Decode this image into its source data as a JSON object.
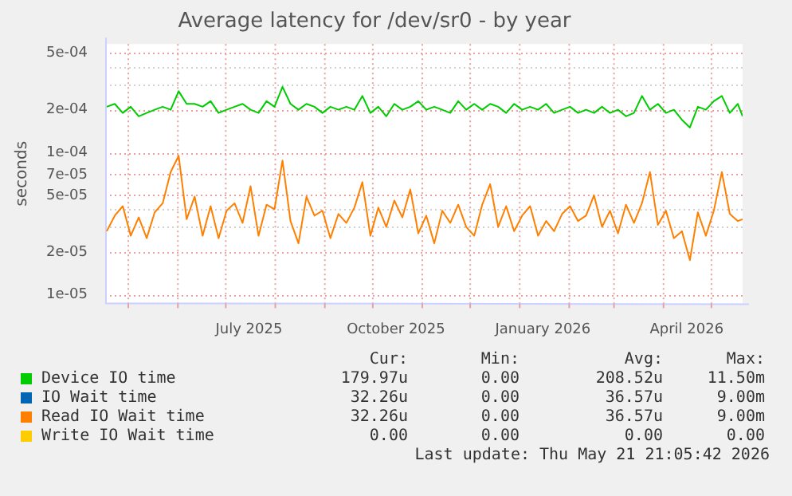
{
  "chart_data": {
    "type": "line",
    "title": "Average latency for /dev/sr0 - by year",
    "ylabel": "seconds",
    "log": "y",
    "grid": true,
    "legend": "bottom",
    "marker": "none",
    "x": [
      "2025-04-18",
      "2025-04-23",
      "2025-04-28",
      "2025-05-03",
      "2025-05-08",
      "2025-05-13",
      "2025-05-18",
      "2025-05-23",
      "2025-05-28",
      "2025-06-02",
      "2025-06-07",
      "2025-06-12",
      "2025-06-17",
      "2025-06-22",
      "2025-06-27",
      "2025-07-02",
      "2025-07-07",
      "2025-07-12",
      "2025-07-17",
      "2025-07-22",
      "2025-07-27",
      "2025-08-01",
      "2025-08-06",
      "2025-08-11",
      "2025-08-16",
      "2025-08-21",
      "2025-08-26",
      "2025-08-31",
      "2025-09-05",
      "2025-09-10",
      "2025-09-15",
      "2025-09-20",
      "2025-09-25",
      "2025-09-30",
      "2025-10-05",
      "2025-10-10",
      "2025-10-15",
      "2025-10-20",
      "2025-10-25",
      "2025-10-30",
      "2025-11-04",
      "2025-11-09",
      "2025-11-14",
      "2025-11-19",
      "2025-11-24",
      "2025-11-29",
      "2025-12-04",
      "2025-12-09",
      "2025-12-14",
      "2025-12-19",
      "2025-12-24",
      "2025-12-29",
      "2026-01-03",
      "2026-01-08",
      "2026-01-13",
      "2026-01-18",
      "2026-01-23",
      "2026-01-28",
      "2026-02-02",
      "2026-02-07",
      "2026-02-12",
      "2026-02-17",
      "2026-02-22",
      "2026-02-27",
      "2026-03-04",
      "2026-03-09",
      "2026-03-14",
      "2026-03-19",
      "2026-03-24",
      "2026-03-29",
      "2026-04-03",
      "2026-04-08",
      "2026-04-13",
      "2026-04-18",
      "2026-04-23",
      "2026-04-28",
      "2026-05-03",
      "2026-05-08",
      "2026-05-13",
      "2026-05-18",
      "2026-05-21"
    ],
    "xlim": [
      "2025-04-17",
      "2026-05-21"
    ],
    "xticks": [
      {
        "value": "2025-05-01",
        "label": null
      },
      {
        "value": "2025-06-01",
        "label": null
      },
      {
        "value": "2025-07-01",
        "label": null
      },
      {
        "value": "2025-07-16",
        "label": "July 2025"
      },
      {
        "value": "2025-08-01",
        "label": null
      },
      {
        "value": "2025-09-01",
        "label": null
      },
      {
        "value": "2025-10-01",
        "label": null
      },
      {
        "value": "2025-10-16",
        "label": "October 2025"
      },
      {
        "value": "2025-11-01",
        "label": null
      },
      {
        "value": "2025-12-01",
        "label": null
      },
      {
        "value": "2026-01-01",
        "label": null
      },
      {
        "value": "2026-01-16",
        "label": "January 2026"
      },
      {
        "value": "2026-02-01",
        "label": null
      },
      {
        "value": "2026-03-01",
        "label": null
      },
      {
        "value": "2026-04-01",
        "label": null
      },
      {
        "value": "2026-04-16",
        "label": "April 2026"
      },
      {
        "value": "2026-05-01",
        "label": null
      }
    ],
    "ylim": [
      8.7e-06,
      0.00058
    ],
    "yticks": [
      {
        "value": 1e-05,
        "label": "1e-05"
      },
      {
        "value": 2e-05,
        "label": "2e-05"
      },
      {
        "value": 3e-05,
        "label": null
      },
      {
        "value": 4e-05,
        "label": null
      },
      {
        "value": 5e-05,
        "label": "5e-05"
      },
      {
        "value": 7e-05,
        "label": "7e-05"
      },
      {
        "value": 0.0001,
        "label": "1e-04"
      },
      {
        "value": 0.0002,
        "label": "2e-04"
      },
      {
        "value": 0.0003,
        "label": null
      },
      {
        "value": 0.0004,
        "label": null
      },
      {
        "value": 0.0005,
        "label": "5e-04"
      }
    ],
    "series": [
      {
        "name": "Device IO time",
        "color": "#00cc00",
        "values": [
          0.00021,
          0.00022,
          0.00019,
          0.00021,
          0.00018,
          0.00019,
          0.0002,
          0.00021,
          0.0002,
          0.00027,
          0.00022,
          0.00022,
          0.00021,
          0.00023,
          0.00019,
          0.0002,
          0.00021,
          0.00022,
          0.0002,
          0.00019,
          0.00023,
          0.00021,
          0.00029,
          0.00022,
          0.0002,
          0.00022,
          0.00021,
          0.00019,
          0.00021,
          0.0002,
          0.00021,
          0.0002,
          0.00025,
          0.00019,
          0.00021,
          0.00018,
          0.00022,
          0.0002,
          0.00021,
          0.00023,
          0.0002,
          0.00021,
          0.0002,
          0.00019,
          0.00023,
          0.0002,
          0.00022,
          0.0002,
          0.00022,
          0.00021,
          0.00019,
          0.00022,
          0.0002,
          0.00021,
          0.0002,
          0.00022,
          0.00019,
          0.0002,
          0.00021,
          0.00019,
          0.0002,
          0.00019,
          0.00021,
          0.00019,
          0.0002,
          0.00018,
          0.00019,
          0.00025,
          0.0002,
          0.00022,
          0.00019,
          0.0002,
          0.00017,
          0.00015,
          0.00021,
          0.0002,
          0.00023,
          0.00025,
          0.00019,
          0.00022,
          0.00018
        ]
      },
      {
        "name": "IO Wait time",
        "color": "#0066b3",
        "values": [
          null,
          null,
          null,
          null,
          null,
          null,
          null,
          null,
          null,
          null,
          null,
          null,
          null,
          null,
          null,
          null,
          null,
          null,
          null,
          null,
          null,
          null,
          null,
          null,
          null,
          null,
          null,
          null,
          null,
          null,
          null,
          null,
          null,
          null,
          null,
          null,
          null,
          null,
          null,
          null,
          null,
          null,
          null,
          null,
          null,
          null,
          null,
          null,
          null,
          null,
          null,
          null,
          null,
          null,
          null,
          null,
          null,
          null,
          null,
          null,
          null,
          null,
          null,
          null,
          null,
          null,
          null,
          null,
          null,
          null,
          null,
          null,
          null,
          null,
          null,
          null,
          null,
          null,
          null,
          null,
          null
        ]
      },
      {
        "name": "Read IO Wait time",
        "color": "#ff8000",
        "values": [
          2.8e-05,
          3.6e-05,
          4.2e-05,
          2.6e-05,
          3.5e-05,
          2.5e-05,
          3.8e-05,
          4.4e-05,
          7.3e-05,
          9.5e-05,
          3.4e-05,
          4.9e-05,
          2.6e-05,
          4.2e-05,
          2.5e-05,
          3.9e-05,
          4.4e-05,
          3.2e-05,
          5.8e-05,
          2.6e-05,
          4.3e-05,
          4e-05,
          8.8e-05,
          3.3e-05,
          2.3e-05,
          4.9e-05,
          3.6e-05,
          3.9e-05,
          2.5e-05,
          3.7e-05,
          3.2e-05,
          4.1e-05,
          6.2e-05,
          2.6e-05,
          4.1e-05,
          3e-05,
          4.6e-05,
          3.5e-05,
          5.5e-05,
          2.7e-05,
          3.6e-05,
          2.3e-05,
          3.9e-05,
          3.2e-05,
          4.3e-05,
          3e-05,
          2.6e-05,
          4.3e-05,
          6e-05,
          3e-05,
          4.2e-05,
          2.8e-05,
          3.6e-05,
          4.2e-05,
          2.6e-05,
          3.3e-05,
          2.8e-05,
          3.7e-05,
          4.2e-05,
          3.3e-05,
          3.6e-05,
          5e-05,
          3e-05,
          3.9e-05,
          2.7e-05,
          4.3e-05,
          3.2e-05,
          4.4e-05,
          7.3e-05,
          3.1e-05,
          3.9e-05,
          2.5e-05,
          2.8e-05,
          1.75e-05,
          3.8e-05,
          2.6e-05,
          3.9e-05,
          7.3e-05,
          3.7e-05,
          3.3e-05,
          3.4e-05
        ]
      },
      {
        "name": "Write IO Wait time",
        "color": "#ffcc00",
        "values": [
          null,
          null,
          null,
          null,
          null,
          null,
          null,
          null,
          null,
          null,
          null,
          null,
          null,
          null,
          null,
          null,
          null,
          null,
          null,
          null,
          null,
          null,
          null,
          null,
          null,
          null,
          null,
          null,
          null,
          null,
          null,
          null,
          null,
          null,
          null,
          null,
          null,
          null,
          null,
          null,
          null,
          null,
          null,
          null,
          null,
          null,
          null,
          null,
          null,
          null,
          null,
          null,
          null,
          null,
          null,
          null,
          null,
          null,
          null,
          null,
          null,
          null,
          null,
          null,
          null,
          null,
          null,
          null,
          null,
          null,
          null,
          null,
          null,
          null,
          null,
          null,
          null,
          null,
          null,
          null,
          null
        ]
      }
    ],
    "annotations": [
      "Cur:",
      "Min:",
      "Avg:",
      "Max:",
      "179.97u",
      "0.00",
      "208.52u",
      "11.50m",
      "32.26u",
      "0.00",
      "36.57u",
      "9.00m",
      "32.26u",
      "0.00",
      "36.57u",
      "9.00m",
      "0.00",
      "0.00",
      "0.00",
      "0.00",
      "Last update: Thu May 21 21:05:42 2026"
    ]
  }
}
